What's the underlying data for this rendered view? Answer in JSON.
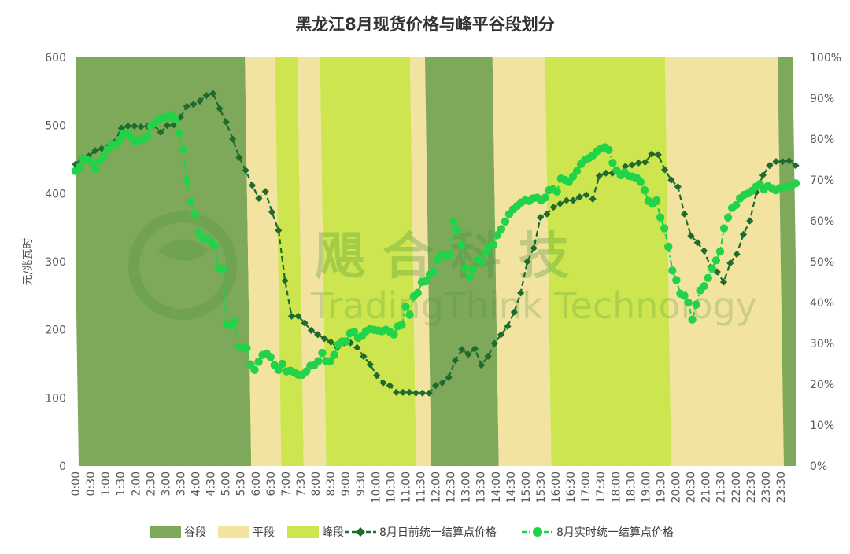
{
  "watermark": {
    "cn": "飓   合   科   技",
    "en": "TradingThink Technology"
  },
  "chart_data": {
    "type": "line",
    "title": "黑龙江8月现货价格与峰平谷段划分",
    "ylabel": "元/兆瓦时",
    "ylim": [
      0,
      600
    ],
    "y_ticks": [
      "0",
      "100",
      "200",
      "300",
      "400",
      "500",
      "600"
    ],
    "y2lim": [
      0,
      100
    ],
    "y2_ticks": [
      "0%",
      "10%",
      "20%",
      "30%",
      "40%",
      "50%",
      "60%",
      "70%",
      "80%",
      "90%",
      "100%"
    ],
    "x_ticks": [
      "0:00",
      "0:30",
      "1:00",
      "1:30",
      "2:00",
      "2:30",
      "3:00",
      "3:30",
      "4:00",
      "4:30",
      "5:00",
      "5:30",
      "6:00",
      "6:30",
      "7:00",
      "7:30",
      "8:00",
      "8:30",
      "9:00",
      "9:30",
      "10:00",
      "10:30",
      "11:00",
      "11:30",
      "12:00",
      "12:30",
      "13:00",
      "13:30",
      "14:00",
      "14:30",
      "15:00",
      "15:30",
      "16:00",
      "16:30",
      "17:00",
      "17:30",
      "18:00",
      "18:30",
      "19:00",
      "19:30",
      "20:00",
      "20:30",
      "21:00",
      "21:30",
      "22:00",
      "22:30",
      "23:00",
      "23:30"
    ],
    "legend_position": "bottom",
    "segments": {
      "colors": {
        "valley": "#7fa95a",
        "flat": "#f3e3a0",
        "peak": "#cde64f"
      },
      "list": [
        {
          "type": "valley",
          "from": "0:00",
          "to": "5:45"
        },
        {
          "type": "flat",
          "from": "5:45",
          "to": "6:45"
        },
        {
          "type": "peak",
          "from": "6:45",
          "to": "7:30"
        },
        {
          "type": "flat",
          "from": "7:30",
          "to": "8:15"
        },
        {
          "type": "peak",
          "from": "8:15",
          "to": "11:15"
        },
        {
          "type": "flat",
          "from": "11:15",
          "to": "11:45"
        },
        {
          "type": "valley",
          "from": "11:45",
          "to": "14:00"
        },
        {
          "type": "flat",
          "from": "14:00",
          "to": "15:45"
        },
        {
          "type": "peak",
          "from": "15:45",
          "to": "19:45"
        },
        {
          "type": "flat",
          "from": "19:45",
          "to": "23:30"
        },
        {
          "type": "valley",
          "from": "23:30",
          "to": "24:00"
        }
      ]
    },
    "series": [
      {
        "name": "8月日前统一结算点价格",
        "color": "#1e6b2e",
        "marker": "diamond",
        "values": [
          443,
          452,
          455,
          463,
          466,
          469,
          476,
          496,
          499,
          499,
          498,
          499,
          500,
          490,
          500,
          501,
          512,
          528,
          531,
          536,
          544,
          547,
          525,
          505,
          480,
          453,
          434,
          412,
          393,
          403,
          373,
          346,
          272,
          220,
          220,
          210,
          199,
          193,
          187,
          182,
          174,
          181,
          181,
          174,
          161,
          149,
          133,
          122,
          118,
          108,
          108,
          108,
          107,
          107,
          107,
          118,
          122,
          130,
          155,
          171,
          164,
          172,
          148,
          161,
          180,
          193,
          205,
          226,
          254,
          300,
          320,
          365,
          370,
          380,
          385,
          390,
          390,
          395,
          398,
          392,
          426,
          430,
          430,
          430,
          440,
          442,
          445,
          446,
          458,
          457,
          435,
          420,
          410,
          370,
          338,
          328,
          316,
          292,
          285,
          270,
          298,
          311,
          340,
          360,
          402,
          427,
          441,
          447,
          447,
          448,
          441
        ]
      },
      {
        "name": "8月实时统一结算点价格",
        "color": "#22d34a",
        "marker": "circle",
        "values": [
          433,
          439,
          451,
          449,
          446,
          436,
          447,
          454,
          464,
          471,
          472,
          479,
          488,
          488,
          483,
          477,
          478,
          480,
          484,
          499,
          504,
          510,
          512,
          512,
          515,
          509,
          489,
          464,
          419,
          388,
          370,
          343,
          334,
          334,
          330,
          323,
          291,
          289,
          208,
          206,
          213,
          175,
          174,
          173,
          149,
          141,
          153,
          163,
          165,
          160,
          148,
          141,
          150,
          139,
          140,
          137,
          134,
          134,
          139,
          147,
          148,
          154,
          166,
          154,
          154,
          163,
          178,
          183,
          183,
          195,
          197,
          188,
          191,
          198,
          201,
          200,
          199,
          198,
          200,
          197,
          193,
          205,
          207,
          234,
          222,
          249,
          254,
          270,
          271,
          281,
          285,
          303,
          311,
          310,
          310,
          359,
          346,
          324,
          290,
          278,
          289,
          303,
          300,
          313,
          322,
          325,
          339,
          348,
          359,
          370,
          377,
          382,
          387,
          390,
          389,
          393,
          394,
          390,
          394,
          405,
          406,
          403,
          422,
          420,
          417,
          425,
          433,
          443,
          449,
          452,
          456,
          462,
          466,
          468,
          464,
          445,
          434,
          427,
          431,
          426,
          425,
          423,
          417,
          405,
          389,
          385,
          390,
          365,
          349,
          322,
          287,
          273,
          253,
          250,
          240,
          215,
          237,
          258,
          264,
          276,
          290,
          302,
          315,
          349,
          365,
          379,
          383,
          393,
          398,
          400,
          404,
          410,
          414,
          406,
          411,
          408,
          405,
          408,
          409,
          410,
          412,
          415
        ]
      }
    ],
    "legend": [
      "谷段",
      "平段",
      "峰段",
      "8月日前统一结算点价格",
      "8月实时统一结算点价格"
    ]
  }
}
